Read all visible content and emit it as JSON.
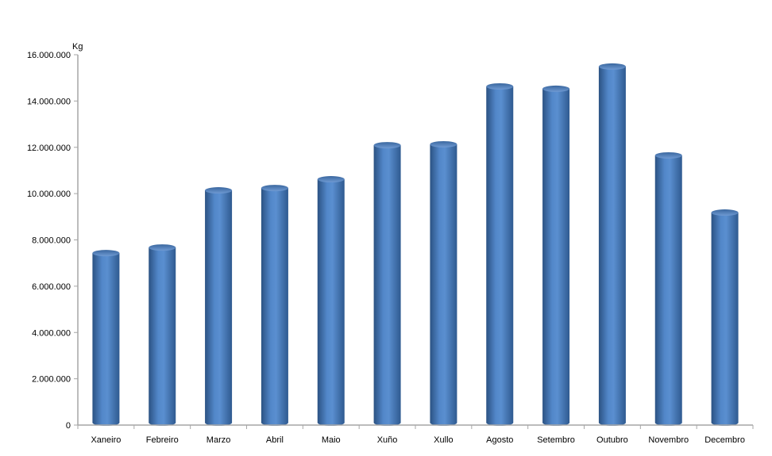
{
  "chart_data": {
    "type": "bar",
    "style": "3d-cylinder",
    "title": "",
    "xlabel": "",
    "ylabel": "Kg",
    "ylim": [
      0,
      16000000
    ],
    "yticks": [
      0,
      2000000,
      4000000,
      6000000,
      8000000,
      10000000,
      12000000,
      14000000,
      16000000
    ],
    "ytick_labels": [
      "0",
      "2.000.000",
      "4.000.000",
      "6.000.000",
      "8.000.000",
      "10.000.000",
      "12.000.000",
      "14.000.000",
      "16.000.000"
    ],
    "categories": [
      "Xaneiro",
      "Febreiro",
      "Marzo",
      "Abril",
      "Maio",
      "Xuño",
      "Xullo",
      "Agosto",
      "Setembro",
      "Outubro",
      "Novembro",
      "Decembro"
    ],
    "values": [
      7430000,
      7670000,
      10140000,
      10240000,
      10620000,
      12090000,
      12130000,
      14630000,
      14530000,
      15490000,
      11650000,
      9180000
    ],
    "grid": false,
    "legend": "none",
    "colors": {
      "bar": "#4a7dbf",
      "bar_dark": "#2b5283",
      "bar_light": "#6f9ad3",
      "axis": "#a6a6a6"
    }
  }
}
